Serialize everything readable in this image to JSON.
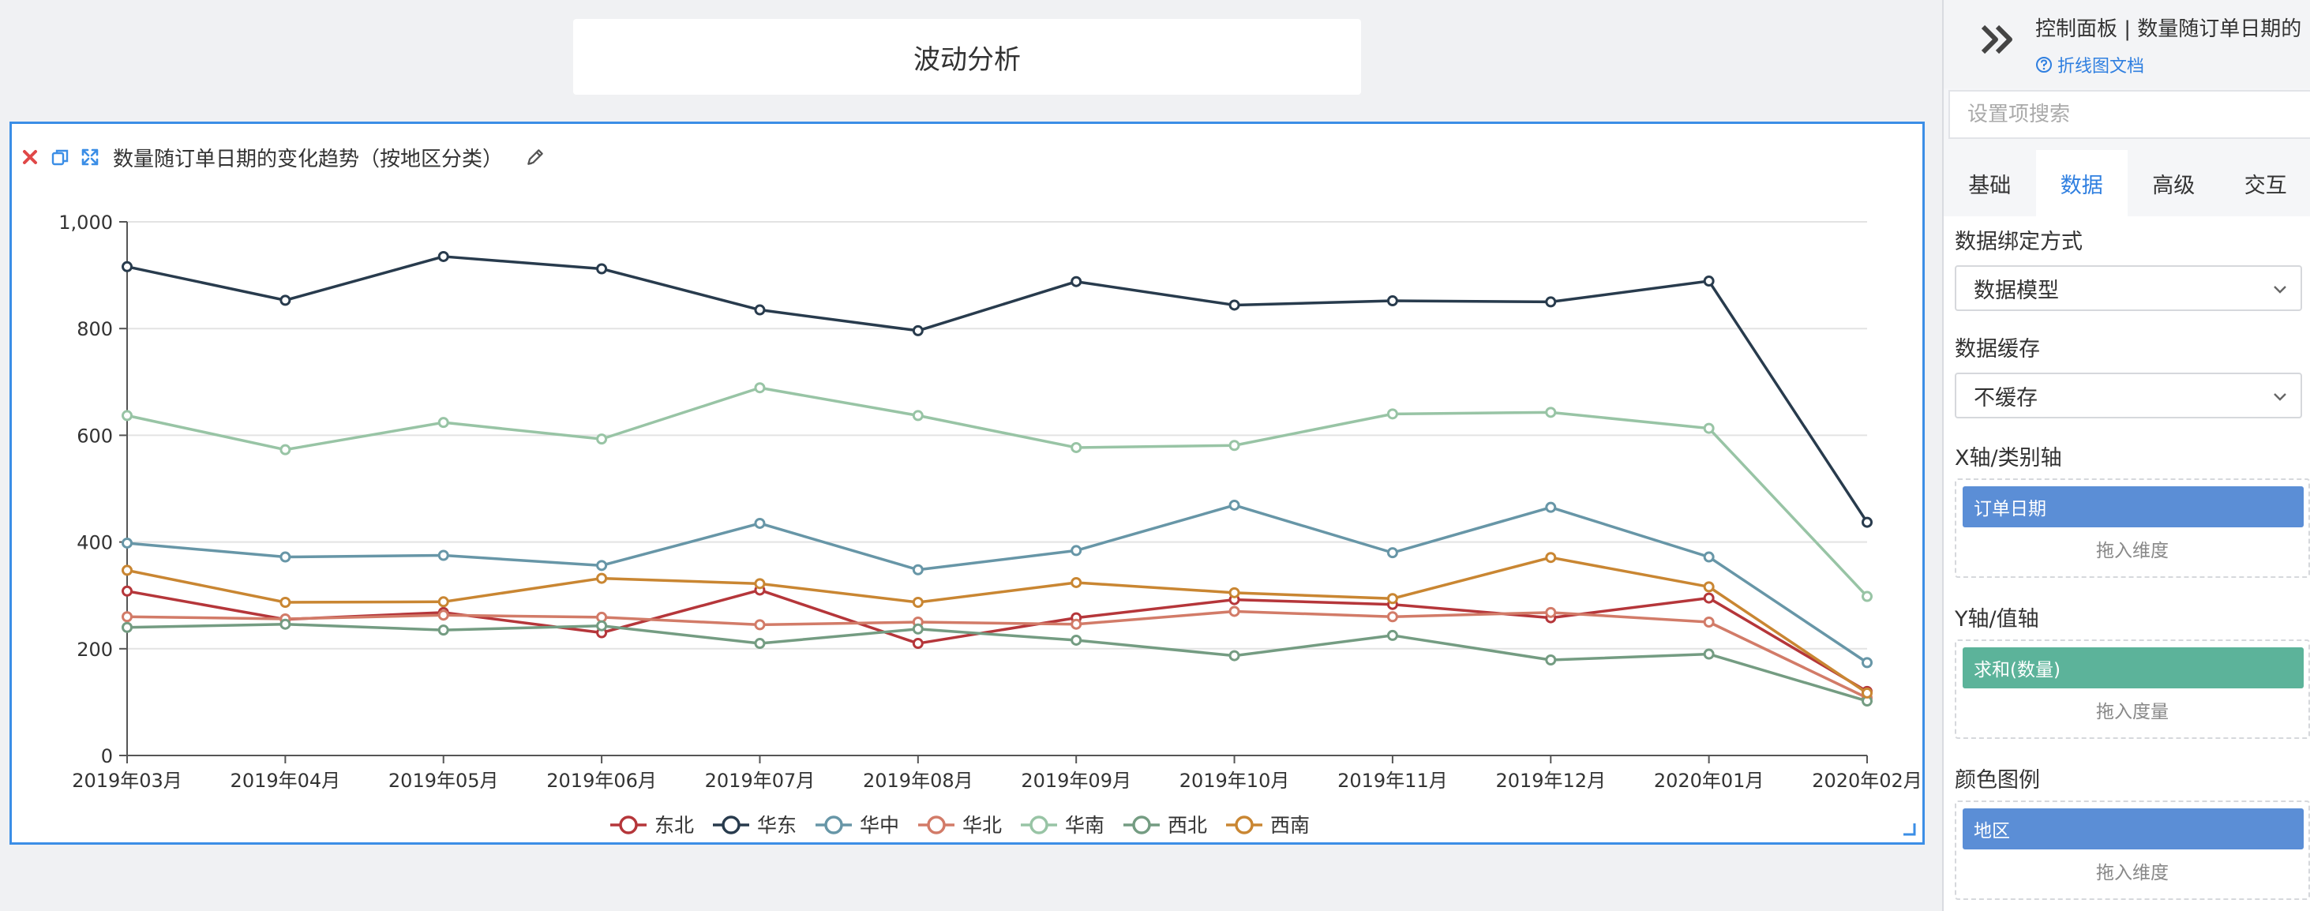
{
  "page": {
    "title_box": "波动分析"
  },
  "chart_card": {
    "title": "数量随订单日期的变化趋势（按地区分类）"
  },
  "panel": {
    "title": "控制面板 | 数量随订单日期的",
    "doc_link": "折线图文档",
    "search_placeholder": "设置项搜索",
    "tabs": [
      {
        "label": "基础",
        "active": false
      },
      {
        "label": "数据",
        "active": true
      },
      {
        "label": "高级",
        "active": false
      },
      {
        "label": "交互",
        "active": false
      }
    ],
    "binding_label": "数据绑定方式",
    "binding_value": "数据模型",
    "cache_label": "数据缓存",
    "cache_value": "不缓存",
    "x_axis_label": "X轴/类别轴",
    "x_axis_chip": "订单日期",
    "x_axis_hint": "拖入维度",
    "y_axis_label": "Y轴/值轴",
    "y_axis_chip": "求和(数量)",
    "y_axis_hint": "拖入度量",
    "legend_label": "颜色图例",
    "legend_chip": "地区",
    "legend_hint": "拖入维度",
    "colors": {
      "accent": "#2f7fe0",
      "chip_blue": "#5b8ed6",
      "chip_green": "#5cb39a"
    }
  },
  "chart_data": {
    "type": "line",
    "categories": [
      "2019年03月",
      "2019年04月",
      "2019年05月",
      "2019年06月",
      "2019年07月",
      "2019年08月",
      "2019年09月",
      "2019年10月",
      "2019年11月",
      "2019年12月",
      "2020年01月",
      "2020年02月"
    ],
    "ylim": [
      0,
      1000
    ],
    "yticks": [
      0,
      200,
      400,
      600,
      800,
      1000
    ],
    "ytick_labels": [
      "0",
      "200",
      "400",
      "600",
      "800",
      "1,000"
    ],
    "grid": true,
    "legend_position": "bottom",
    "series": [
      {
        "name": "东北",
        "color": "#b5363a",
        "values": [
          308,
          255,
          268,
          230,
          310,
          210,
          258,
          292,
          283,
          258,
          295,
          120
        ]
      },
      {
        "name": "华东",
        "color": "#283b4d",
        "values": [
          916,
          853,
          935,
          912,
          835,
          796,
          888,
          844,
          852,
          850,
          889,
          437
        ]
      },
      {
        "name": "华中",
        "color": "#6796a7",
        "values": [
          398,
          372,
          375,
          356,
          435,
          348,
          384,
          469,
          380,
          465,
          372,
          174
        ]
      },
      {
        "name": "华北",
        "color": "#d27b68",
        "values": [
          260,
          256,
          263,
          259,
          245,
          250,
          246,
          270,
          260,
          268,
          250,
          108
        ]
      },
      {
        "name": "华南",
        "color": "#98c4a5",
        "values": [
          637,
          573,
          624,
          593,
          689,
          637,
          577,
          581,
          640,
          643,
          613,
          298
        ]
      },
      {
        "name": "西北",
        "color": "#749c82",
        "values": [
          240,
          246,
          235,
          243,
          210,
          237,
          216,
          187,
          225,
          179,
          190,
          102
        ]
      },
      {
        "name": "西南",
        "color": "#c98632",
        "values": [
          347,
          287,
          288,
          332,
          322,
          287,
          324,
          305,
          294,
          371,
          316,
          117
        ]
      }
    ]
  }
}
